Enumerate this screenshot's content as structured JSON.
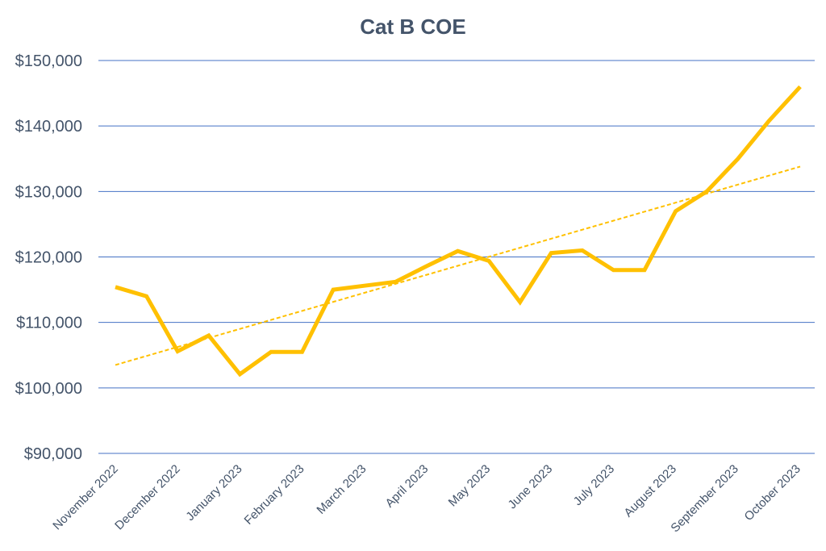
{
  "chart_data": {
    "type": "line",
    "title": "Cat B COE",
    "xlabel": "",
    "ylabel": "",
    "ylim": [
      90000,
      150000
    ],
    "yticks": [
      90000,
      100000,
      110000,
      120000,
      130000,
      140000,
      150000
    ],
    "ytick_labels": [
      "$90,000",
      "$100,000",
      "$110,000",
      "$120,000",
      "$130,000",
      "$140,000",
      "$150,000"
    ],
    "grid": true,
    "legend": "none",
    "tick_labels": [
      "November 2022",
      "December 2022",
      "January 2023",
      "February 2023",
      "March 2023",
      "April 2023",
      "May 2023",
      "June 2023",
      "July 2023",
      "August 2023",
      "September 2023",
      "October 2023"
    ],
    "series": [
      {
        "values": [
          115400,
          114000,
          105600,
          108000,
          102100,
          105500,
          105500,
          115000,
          115600,
          116200,
          118600,
          120900,
          119400,
          113100,
          120600,
          121000,
          118000,
          118000,
          127000,
          130000,
          135000,
          140800,
          146000
        ],
        "color": "#ffc000"
      }
    ],
    "trendline": {
      "type": "linear",
      "start": 103500,
      "end": 133800,
      "color": "#ffc000"
    },
    "colors": {
      "gridline": "#4472c4",
      "text": "#44546a"
    }
  }
}
